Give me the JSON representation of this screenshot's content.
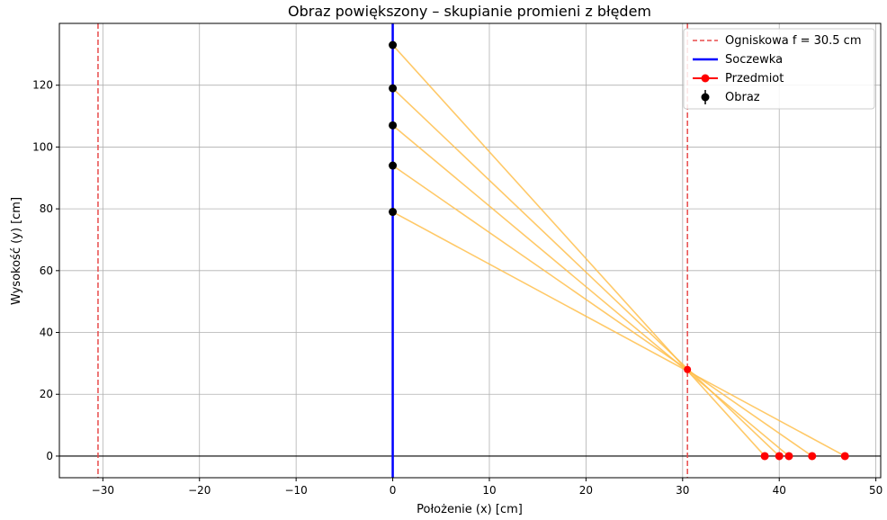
{
  "chart_data": {
    "type": "line",
    "title": "Obraz powiększony – skupianie promieni z błędem",
    "xlabel": "Położenie (x) [cm]",
    "ylabel": "Wysokość (y) [cm]",
    "xlim": [
      -34.5,
      50.5
    ],
    "ylim": [
      -7,
      140
    ],
    "x_ticks": [
      -30,
      -20,
      -10,
      0,
      10,
      20,
      30,
      40,
      50
    ],
    "y_ticks": [
      0,
      20,
      40,
      60,
      80,
      100,
      120
    ],
    "x_tick_labels": [
      "−30",
      "−20",
      "−10",
      "0",
      "10",
      "20",
      "30",
      "40",
      "50"
    ],
    "y_tick_labels": [
      "0",
      "20",
      "40",
      "60",
      "80",
      "100",
      "120"
    ],
    "grid": true,
    "legend_position": "top-right",
    "focal_lines": [
      -30.5,
      30.5
    ],
    "focal_point": {
      "x": 30.5,
      "y": 28
    },
    "lens_x": 0,
    "image_points": [
      {
        "x": 0,
        "y": 133
      },
      {
        "x": 0,
        "y": 119
      },
      {
        "x": 0,
        "y": 107
      },
      {
        "x": 0,
        "y": 94
      },
      {
        "x": 0,
        "y": 79
      }
    ],
    "object_points": [
      {
        "x": 38.5,
        "y": 0
      },
      {
        "x": 40.0,
        "y": 0
      },
      {
        "x": 41.0,
        "y": 0
      },
      {
        "x": 43.4,
        "y": 0
      },
      {
        "x": 46.8,
        "y": 0
      }
    ],
    "rays": [
      {
        "from": [
          0,
          133
        ],
        "to": [
          38.5,
          0
        ]
      },
      {
        "from": [
          0,
          119
        ],
        "to": [
          40.0,
          0
        ]
      },
      {
        "from": [
          0,
          107
        ],
        "to": [
          41.0,
          0
        ]
      },
      {
        "from": [
          0,
          94
        ],
        "to": [
          43.4,
          0
        ]
      },
      {
        "from": [
          0,
          79
        ],
        "to": [
          46.8,
          0
        ]
      }
    ],
    "legend": [
      {
        "label": "Ogniskowa f = 30.5 cm",
        "style": "dashed-line",
        "color": "#e84a4a"
      },
      {
        "label": "Soczewka",
        "style": "line",
        "color": "#1a1aff"
      },
      {
        "label": "Przedmiot",
        "style": "line-marker",
        "color": "#ff0000"
      },
      {
        "label": "Obraz",
        "style": "errorbar-marker",
        "color": "#000000"
      }
    ],
    "colors": {
      "focal": "#e84a4a",
      "lens": "#0000ff",
      "ray": "#ffc04d",
      "object": "#ff0000",
      "image": "#000000",
      "axis_line": "#000000",
      "grid": "#b0b0b0"
    }
  }
}
